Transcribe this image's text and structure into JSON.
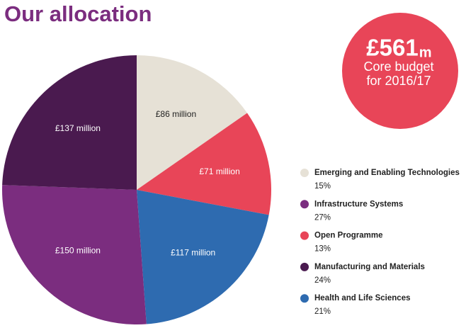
{
  "chart_data": {
    "type": "pie",
    "title": "Our allocation",
    "categories": [
      "Emerging and Enabling Technologies",
      "Open Programme",
      "Health and Life Sciences",
      "Infrastructure Systems",
      "Manufacturing and Materials"
    ],
    "values": [
      86,
      71,
      117,
      150,
      137
    ],
    "value_labels": [
      "£86 million",
      "£71 million",
      "£117 million",
      "£150 million",
      "£137 million"
    ],
    "shares": [
      15,
      13,
      21,
      27,
      24
    ],
    "share_labels": [
      "15%",
      "13%",
      "21%",
      "27%",
      "24%"
    ],
    "colors": [
      "#e6e1d6",
      "#e84558",
      "#2e6bb0",
      "#7b2d7f",
      "#4a1a4f"
    ],
    "total": 561,
    "total_label": "£561",
    "total_unit": "m",
    "total_caption": [
      "Core budget",
      "for 2016/17"
    ],
    "total_color": "#e84558"
  }
}
